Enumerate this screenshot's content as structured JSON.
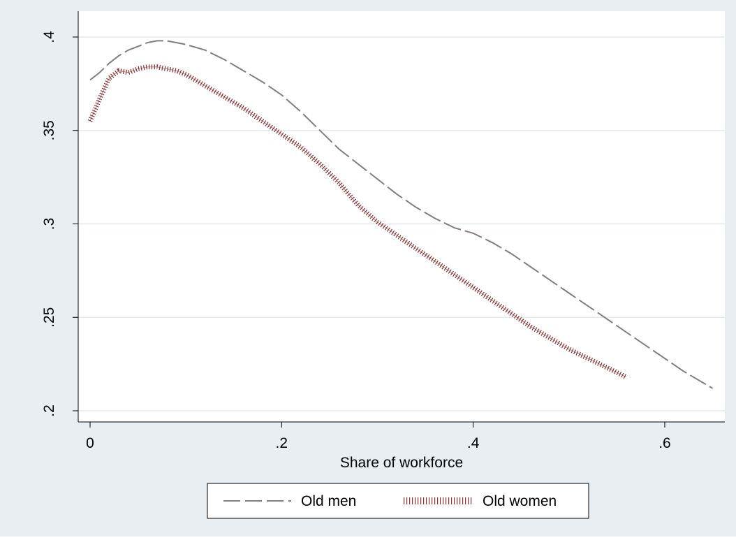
{
  "chart_data": {
    "type": "line",
    "title": "",
    "xlabel": "Share of workforce",
    "ylabel": "",
    "xlim": [
      0,
      0.66
    ],
    "ylim": [
      0.2,
      0.405
    ],
    "x_ticks": [
      0,
      0.2,
      0.4,
      0.6
    ],
    "x_tick_labels": [
      "0",
      ".2",
      ".4",
      ".6"
    ],
    "y_ticks": [
      0.2,
      0.25,
      0.3,
      0.35,
      0.4
    ],
    "y_tick_labels": [
      ".2",
      ".25",
      ".3",
      ".35",
      ".4"
    ],
    "grid": true,
    "legend_position": "bottom",
    "colors": {
      "outer_background": "#e8eef2",
      "plot_background": "#ffffff",
      "gridline": "#e4ebee",
      "axis": "#000000"
    },
    "series": [
      {
        "name": "Old men",
        "color": "#7f7f7f",
        "line_style": "long-dash",
        "x": [
          0,
          0.01,
          0.02,
          0.03,
          0.04,
          0.05,
          0.06,
          0.07,
          0.08,
          0.09,
          0.1,
          0.12,
          0.14,
          0.16,
          0.18,
          0.2,
          0.22,
          0.24,
          0.26,
          0.28,
          0.3,
          0.32,
          0.34,
          0.36,
          0.38,
          0.4,
          0.42,
          0.44,
          0.46,
          0.48,
          0.5,
          0.52,
          0.54,
          0.56,
          0.58,
          0.6,
          0.62,
          0.65
        ],
        "y": [
          0.377,
          0.381,
          0.386,
          0.39,
          0.393,
          0.395,
          0.397,
          0.398,
          0.398,
          0.397,
          0.396,
          0.393,
          0.388,
          0.382,
          0.376,
          0.369,
          0.36,
          0.35,
          0.34,
          0.332,
          0.324,
          0.316,
          0.309,
          0.303,
          0.298,
          0.295,
          0.29,
          0.284,
          0.277,
          0.27,
          0.263,
          0.256,
          0.249,
          0.242,
          0.235,
          0.228,
          0.221,
          0.212
        ]
      },
      {
        "name": "Old women",
        "color": "#8b2e2e",
        "line_style": "dotted",
        "x": [
          0,
          0.01,
          0.02,
          0.03,
          0.04,
          0.05,
          0.06,
          0.07,
          0.08,
          0.09,
          0.1,
          0.12,
          0.14,
          0.16,
          0.18,
          0.2,
          0.22,
          0.24,
          0.26,
          0.28,
          0.3,
          0.32,
          0.34,
          0.36,
          0.38,
          0.4,
          0.42,
          0.44,
          0.46,
          0.48,
          0.5,
          0.52,
          0.54,
          0.56
        ],
        "y": [
          0.355,
          0.367,
          0.378,
          0.382,
          0.381,
          0.383,
          0.384,
          0.384,
          0.383,
          0.382,
          0.38,
          0.374,
          0.368,
          0.362,
          0.355,
          0.348,
          0.341,
          0.332,
          0.322,
          0.31,
          0.301,
          0.294,
          0.287,
          0.28,
          0.273,
          0.266,
          0.259,
          0.252,
          0.245,
          0.239,
          0.233,
          0.228,
          0.223,
          0.218
        ]
      }
    ]
  }
}
